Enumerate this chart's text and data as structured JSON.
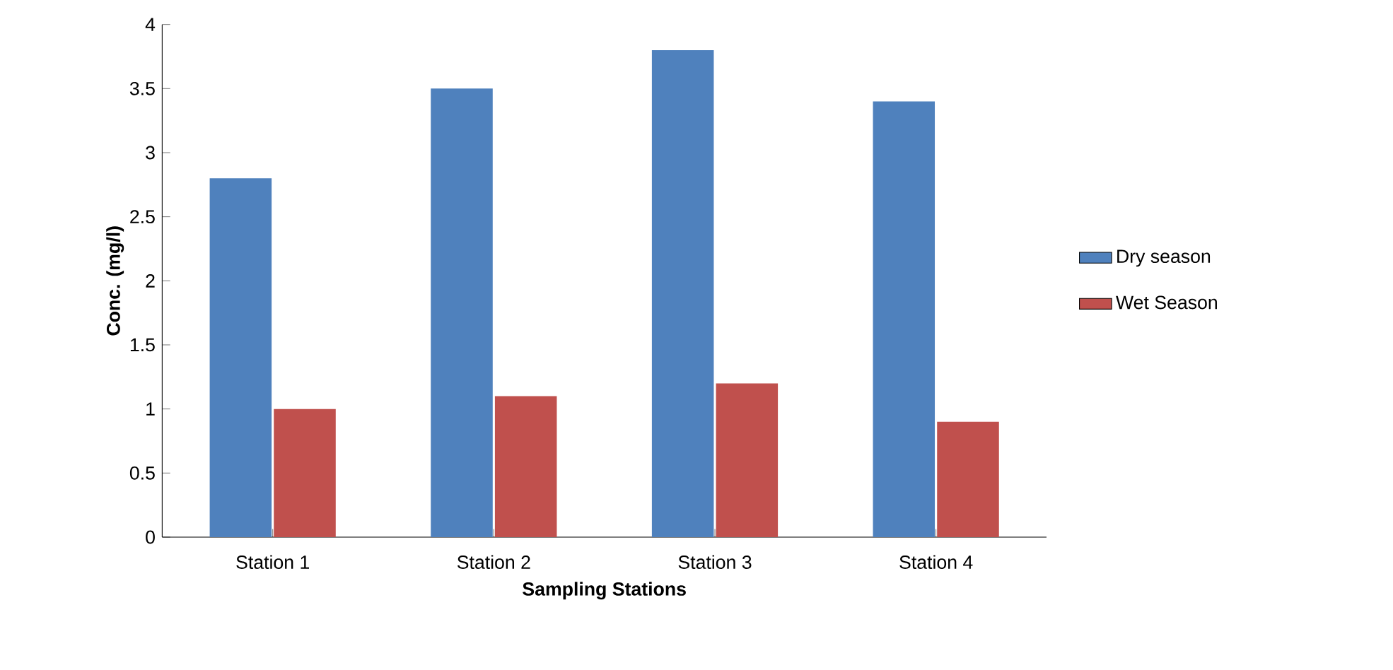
{
  "chart_data": {
    "type": "bar",
    "xlabel": "Sampling Stations",
    "ylabel": "Conc. (mg/l)",
    "categories": [
      "Station 1",
      "Station 2",
      "Station 3",
      "Station 4"
    ],
    "series": [
      {
        "name": "Dry season",
        "color": "#4f81bd",
        "values": [
          2.8,
          3.5,
          3.8,
          3.4
        ]
      },
      {
        "name": "Wet Season",
        "color": "#c0504d",
        "values": [
          1.0,
          1.1,
          1.2,
          0.9
        ]
      }
    ],
    "ylim": [
      0,
      4
    ],
    "yticks": [
      0,
      0.5,
      1,
      1.5,
      2,
      2.5,
      3,
      3.5,
      4
    ],
    "grid": false,
    "legend": "right"
  }
}
